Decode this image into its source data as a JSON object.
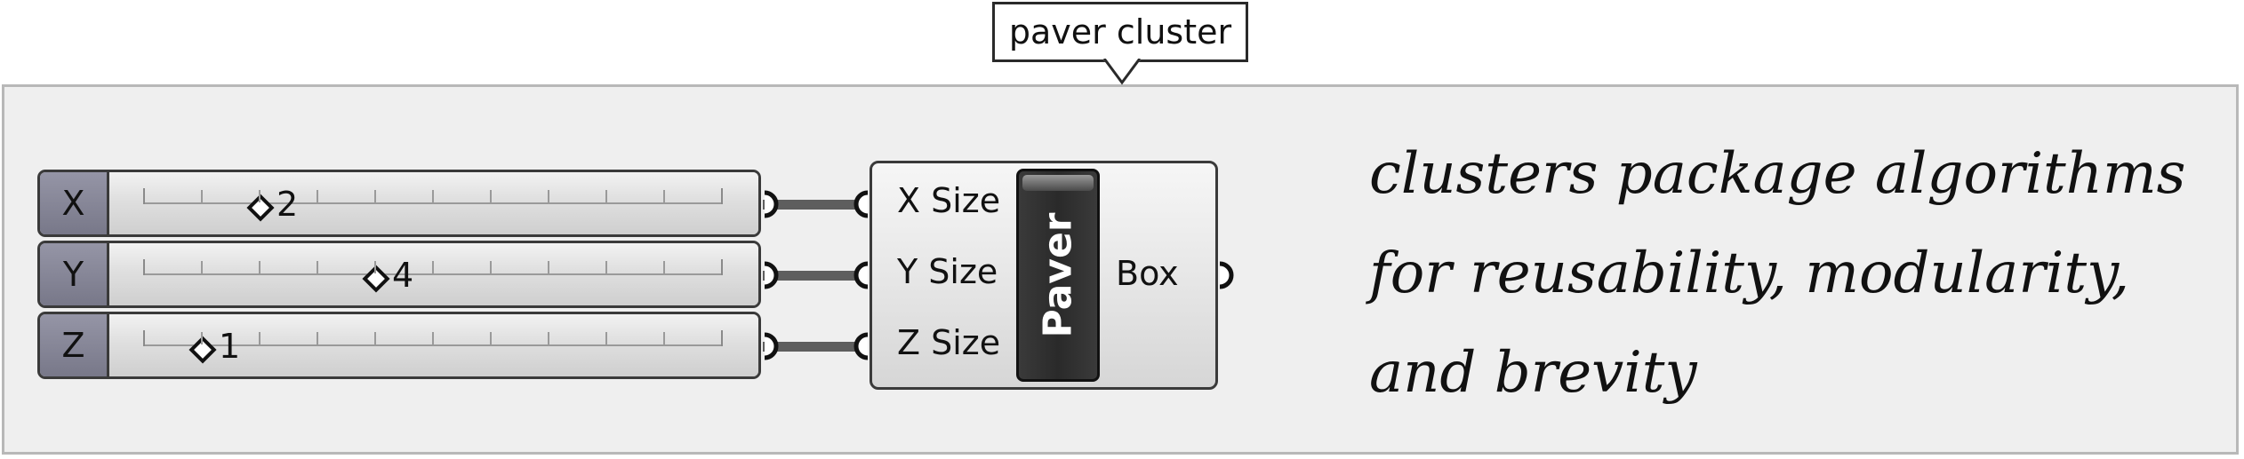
{
  "tooltip": {
    "text": "paver cluster"
  },
  "sliders": [
    {
      "name": "X",
      "value": "2",
      "position": 0.2
    },
    {
      "name": "Y",
      "value": "4",
      "position": 0.4
    },
    {
      "name": "Z",
      "value": "1",
      "position": 0.1
    }
  ],
  "component": {
    "nickname": "Paver",
    "inputs": [
      "X Size",
      "Y Size",
      "Z Size"
    ],
    "output": "Box"
  },
  "note": {
    "lines": [
      "clusters package algorithms",
      "for reusability, modularity,",
      "and brevity"
    ]
  },
  "colors": {
    "canvas": "#efefef",
    "slider_tag": "#8a8a9a",
    "wire": "#5e5e5e",
    "nickname_plate": "#333333"
  }
}
